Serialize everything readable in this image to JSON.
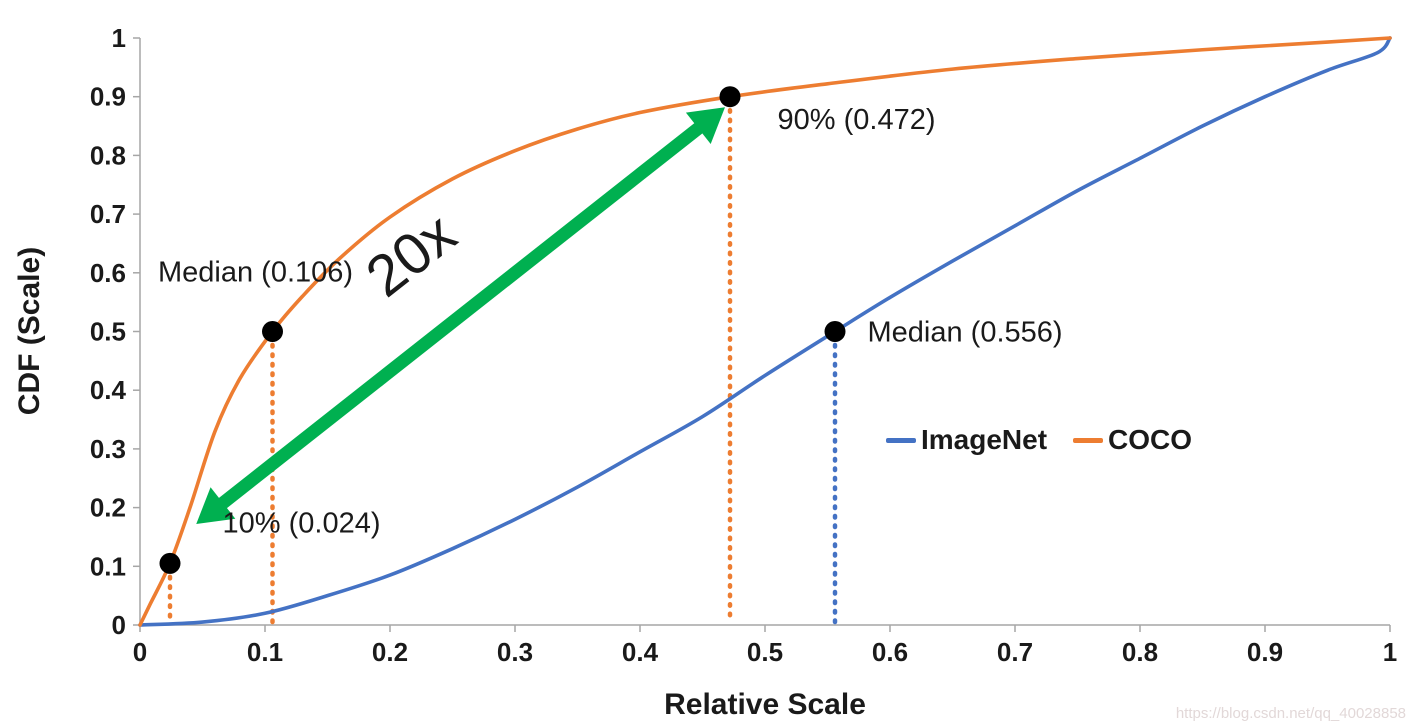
{
  "watermark": "https://blog.csdn.net/qq_40028858",
  "chart_data": {
    "type": "line",
    "title": "",
    "xlabel": "Relative Scale",
    "ylabel": "CDF (Scale)",
    "xlim": [
      0,
      1
    ],
    "ylim": [
      0,
      1
    ],
    "grid": false,
    "legend_position": "inside-right",
    "x_ticks": [
      0,
      0.1,
      0.2,
      0.3,
      0.4,
      0.5,
      0.6,
      0.7,
      0.8,
      0.9,
      1
    ],
    "x_tick_labels": [
      "0",
      "0.1",
      "0.2",
      "0.3",
      "0.4",
      "0.5",
      "0.6",
      "0.7",
      "0.8",
      "0.9",
      "1"
    ],
    "y_ticks": [
      0,
      0.1,
      0.2,
      0.3,
      0.4,
      0.5,
      0.6,
      0.7,
      0.8,
      0.9,
      1
    ],
    "y_tick_labels": [
      "0",
      "0.1",
      "0.2",
      "0.3",
      "0.4",
      "0.5",
      "0.6",
      "0.7",
      "0.8",
      "0.9",
      "1"
    ],
    "series": [
      {
        "name": "ImageNet",
        "color": "#4472C4",
        "points": [
          [
            0,
            0
          ],
          [
            0.05,
            0.005
          ],
          [
            0.1,
            0.02
          ],
          [
            0.15,
            0.05
          ],
          [
            0.2,
            0.085
          ],
          [
            0.25,
            0.13
          ],
          [
            0.3,
            0.18
          ],
          [
            0.35,
            0.235
          ],
          [
            0.4,
            0.295
          ],
          [
            0.45,
            0.355
          ],
          [
            0.5,
            0.425
          ],
          [
            0.556,
            0.5
          ],
          [
            0.6,
            0.558
          ],
          [
            0.65,
            0.62
          ],
          [
            0.7,
            0.68
          ],
          [
            0.75,
            0.74
          ],
          [
            0.8,
            0.795
          ],
          [
            0.85,
            0.85
          ],
          [
            0.9,
            0.9
          ],
          [
            0.95,
            0.945
          ],
          [
            0.99,
            0.975
          ],
          [
            1,
            1
          ]
        ]
      },
      {
        "name": "COCO",
        "color": "#ED7D31",
        "points": [
          [
            0,
            0
          ],
          [
            0.008,
            0.035
          ],
          [
            0.024,
            0.105
          ],
          [
            0.04,
            0.2
          ],
          [
            0.06,
            0.33
          ],
          [
            0.08,
            0.42
          ],
          [
            0.106,
            0.5
          ],
          [
            0.13,
            0.56
          ],
          [
            0.16,
            0.625
          ],
          [
            0.2,
            0.695
          ],
          [
            0.25,
            0.76
          ],
          [
            0.3,
            0.808
          ],
          [
            0.35,
            0.845
          ],
          [
            0.4,
            0.873
          ],
          [
            0.472,
            0.9
          ],
          [
            0.55,
            0.922
          ],
          [
            0.65,
            0.947
          ],
          [
            0.75,
            0.965
          ],
          [
            0.85,
            0.98
          ],
          [
            0.95,
            0.993
          ],
          [
            1,
            1
          ]
        ]
      }
    ],
    "markers": [
      {
        "x": 0.024,
        "y": 0.105,
        "drop_color": "#ED7D31",
        "label": "10% (0.024)"
      },
      {
        "x": 0.106,
        "y": 0.5,
        "drop_color": "#ED7D31",
        "label": "Median (0.106)"
      },
      {
        "x": 0.472,
        "y": 0.9,
        "drop_color": "#ED7D31",
        "label": "90% (0.472)"
      },
      {
        "x": 0.556,
        "y": 0.5,
        "drop_color": "#4472C4",
        "label": "Median (0.556)"
      }
    ],
    "annotations": [
      {
        "text": "Median (0.106)",
        "x": 0.0144,
        "y": 0.585,
        "size": 29
      },
      {
        "text": "90% (0.472)",
        "x": 0.51,
        "y": 0.845,
        "size": 29
      },
      {
        "text": "10% (0.024)",
        "x": 0.066,
        "y": 0.158,
        "size": 29
      },
      {
        "text": "Median (0.556)",
        "x": 0.582,
        "y": 0.483,
        "size": 29
      },
      {
        "text": "20x",
        "x": 0.197,
        "y": 0.555,
        "size": 58,
        "rotation": -38
      }
    ],
    "arrow": {
      "from": [
        0.045,
        0.172
      ],
      "to": [
        0.468,
        0.882
      ],
      "color": "#00B050",
      "label": "20x"
    }
  }
}
